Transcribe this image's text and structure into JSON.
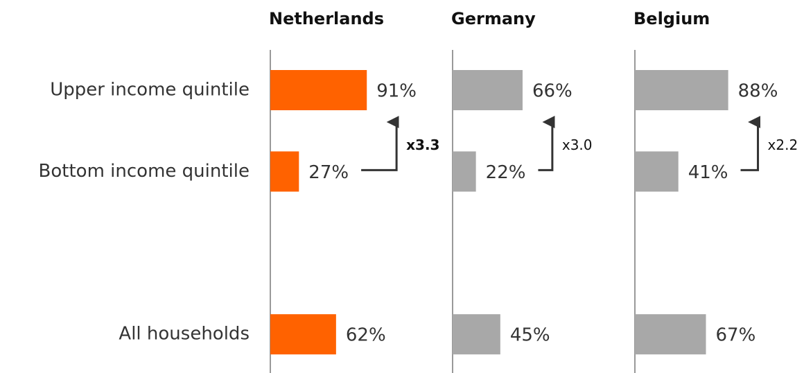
{
  "chart_data": {
    "type": "bar",
    "orientation": "horizontal",
    "categories": [
      "Upper income quintile",
      "Bottom income quintile",
      null,
      "All households"
    ],
    "xlim": [
      0,
      100
    ],
    "series": [
      {
        "name": "Netherlands",
        "color": "#ff6200",
        "values": [
          91,
          27,
          null,
          62
        ],
        "value_labels": [
          "91%",
          "27%",
          null,
          "62%"
        ],
        "annotation": "x3.3"
      },
      {
        "name": "Germany",
        "color": "#a8a8a8",
        "values": [
          66,
          22,
          null,
          45
        ],
        "value_labels": [
          "66%",
          "22%",
          null,
          "45%"
        ],
        "annotation": "x3.0"
      },
      {
        "name": "Belgium",
        "color": "#a8a8a8",
        "values": [
          88,
          41,
          null,
          67
        ],
        "value_labels": [
          "88%",
          "41%",
          null,
          "67%"
        ],
        "annotation": "x2.2"
      }
    ]
  }
}
